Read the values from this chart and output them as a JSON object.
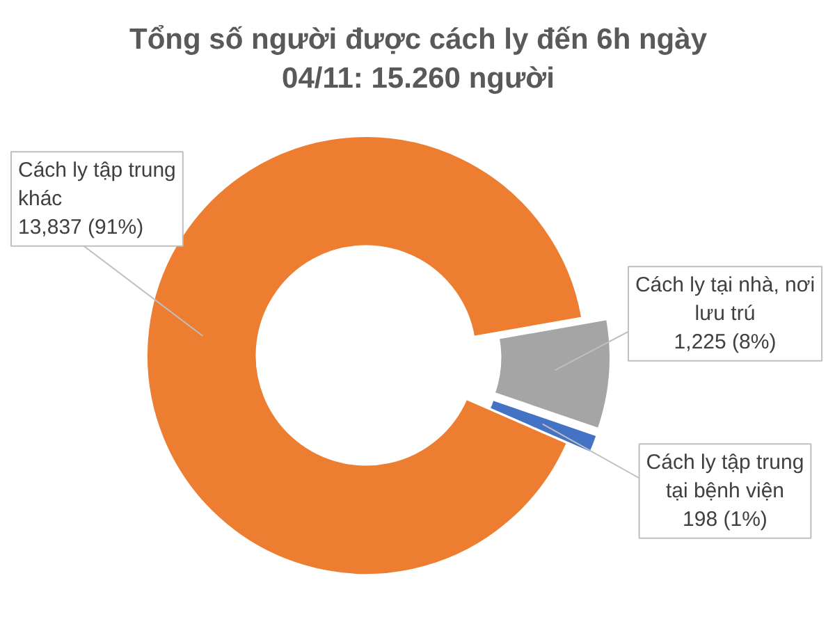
{
  "chart_data": {
    "type": "donut",
    "title": "Tổng số người được cách ly đến 6h ngày 04/11: 15.260 người",
    "categories": [
      "Cách ly tập trung khác",
      "Cách ly tại nhà, nơi lưu trú",
      "Cách ly tập trung tại bệnh viện"
    ],
    "values": [
      13837,
      1225,
      198
    ],
    "value_labels": [
      "13,837 (91%)",
      "1,225 (8%)",
      "198 (1%)"
    ],
    "colors": [
      "#ed7d31",
      "#a5a5a5",
      "#4472c4"
    ]
  }
}
